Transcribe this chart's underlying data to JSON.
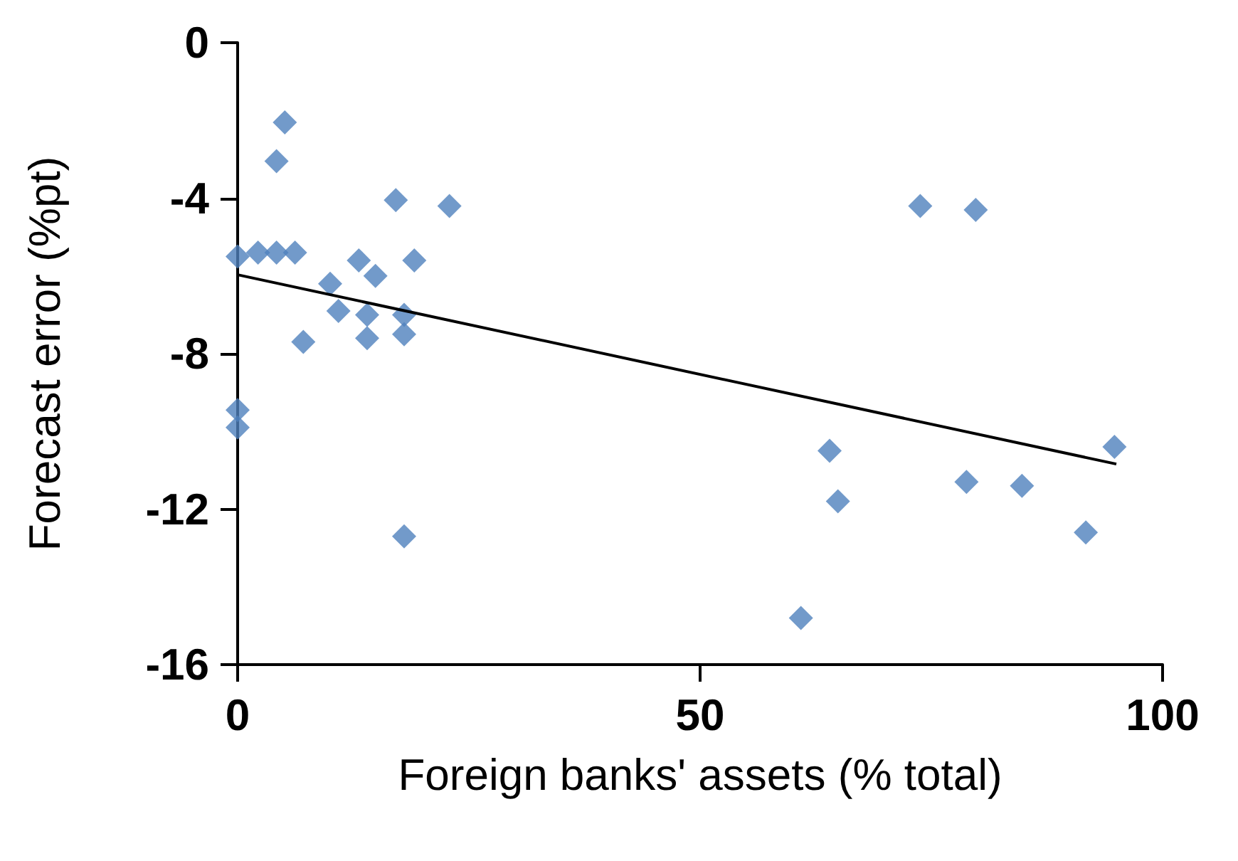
{
  "chart_data": {
    "type": "scatter",
    "xlabel": "Foreign banks' assets (% total)",
    "ylabel": "Forecast error (%pt)",
    "xlim": [
      0,
      100
    ],
    "xticks": [
      0,
      50,
      100
    ],
    "ylim": [
      -16,
      0
    ],
    "yticks": [
      -16,
      -12,
      -8,
      -4,
      0
    ],
    "grid": false,
    "marker": "diamond",
    "series": [
      {
        "color": "#4f81bd",
        "x": [
          5.1,
          4.2,
          0,
          2.2,
          4.2,
          6.2,
          17.1,
          22.9,
          13.1,
          19.1,
          14.9,
          10,
          10.9,
          14,
          18,
          14,
          18,
          7.1,
          0,
          0,
          18,
          73.8,
          79.8,
          64,
          64.9,
          78.8,
          84.8,
          94.8,
          91.7,
          60.9
        ],
        "values": [
          -2.05,
          -3.05,
          -5.5,
          -5.4,
          -5.4,
          -5.4,
          -4.05,
          -4.2,
          -5.6,
          -5.6,
          -6.0,
          -6.2,
          -6.9,
          -7.0,
          -7.0,
          -7.6,
          -7.5,
          -7.7,
          -9.45,
          -9.9,
          -12.7,
          -4.2,
          -4.3,
          -10.5,
          -11.8,
          -11.3,
          -11.4,
          -10.4,
          -12.6,
          -14.8
        ]
      },
      {
        "type": "line",
        "color": "#000000",
        "x": [
          0,
          95
        ],
        "values": [
          -5.97,
          -10.84
        ],
        "marker": "none"
      }
    ]
  }
}
